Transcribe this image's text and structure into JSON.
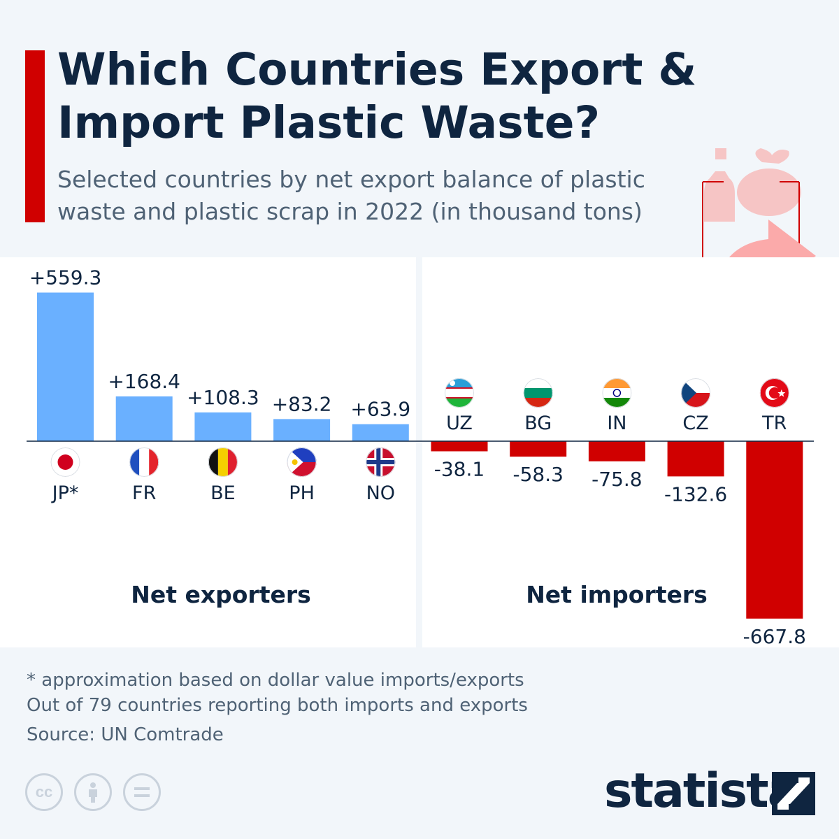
{
  "header": {
    "title": "Which Countries Export & Import Plastic Waste?",
    "subtitle": "Selected countries by net export balance of plastic waste and plastic scrap in 2022 (in thousand tons)"
  },
  "chart_data": {
    "type": "bar",
    "categories": [
      "JP*",
      "FR",
      "BE",
      "PH",
      "NO",
      "UZ",
      "BG",
      "IN",
      "CZ",
      "TR"
    ],
    "values": [
      559.3,
      168.4,
      108.3,
      83.2,
      63.9,
      -38.1,
      -58.3,
      -75.8,
      -132.6,
      -667.8
    ],
    "data_labels": [
      "+559.3",
      "+168.4",
      "+108.3",
      "+83.2",
      "+63.9",
      "-38.1",
      "-58.3",
      "-75.8",
      "-132.6",
      "-667.8"
    ],
    "groups": [
      {
        "label": "Net exporters",
        "categories": [
          "JP*",
          "FR",
          "BE",
          "PH",
          "NO"
        ]
      },
      {
        "label": "Net importers",
        "categories": [
          "UZ",
          "BG",
          "IN",
          "CZ",
          "TR"
        ]
      }
    ],
    "colors": {
      "positive": "#6ab0ff",
      "negative": "#d00000"
    },
    "flag_icons": [
      "japan-flag-icon",
      "france-flag-icon",
      "belgium-flag-icon",
      "philippines-flag-icon",
      "norway-flag-icon",
      "uzbekistan-flag-icon",
      "bulgaria-flag-icon",
      "india-flag-icon",
      "czechia-flag-icon",
      "turkey-flag-icon"
    ],
    "ylim": [
      -667.8,
      559.3
    ]
  },
  "footnotes": {
    "note1": "* approximation based on dollar value imports/exports",
    "note2": "Out of 79 countries reporting both imports and exports",
    "source": "Source: UN Comtrade"
  },
  "license_icons": [
    "cc-icon",
    "attribution-icon",
    "no-derivatives-icon"
  ],
  "brand": {
    "name": "statista",
    "icon": "statista-logo-icon"
  },
  "illustration": {
    "icon": "waste-box-export-icon"
  }
}
